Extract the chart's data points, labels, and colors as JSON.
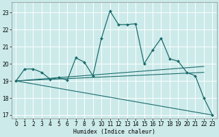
{
  "xlabel": "Humidex (Indice chaleur)",
  "background_color": "#cceaea",
  "grid_color": "#ffffff",
  "line_color": "#1a6b6b",
  "xlim": [
    -0.5,
    23.5
  ],
  "ylim": [
    16.8,
    23.6
  ],
  "yticks": [
    17,
    18,
    19,
    20,
    21,
    22,
    23
  ],
  "xticks": [
    0,
    1,
    2,
    3,
    4,
    5,
    6,
    7,
    8,
    9,
    10,
    11,
    12,
    13,
    14,
    15,
    16,
    17,
    18,
    19,
    20,
    21,
    22,
    23
  ],
  "lines": [
    {
      "x": [
        0,
        1,
        2,
        3,
        4,
        5,
        6,
        7,
        8,
        9,
        10,
        11,
        12,
        13,
        14,
        15,
        16,
        17,
        18,
        19,
        20,
        21,
        22,
        23
      ],
      "y": [
        19.0,
        19.7,
        19.7,
        19.5,
        19.1,
        19.2,
        19.05,
        20.35,
        20.1,
        19.3,
        21.5,
        23.1,
        22.3,
        22.3,
        22.35,
        20.0,
        20.8,
        21.5,
        20.3,
        20.15,
        19.5,
        19.3,
        18.0,
        17.0
      ],
      "marker": "D",
      "markersize": 2.0,
      "linewidth": 0.9
    },
    {
      "x": [
        0,
        23
      ],
      "y": [
        19.0,
        17.0
      ],
      "marker": null,
      "markersize": 0,
      "linewidth": 0.8
    },
    {
      "x": [
        0,
        22
      ],
      "y": [
        19.0,
        19.5
      ],
      "marker": null,
      "markersize": 0,
      "linewidth": 0.8
    },
    {
      "x": [
        0,
        22
      ],
      "y": [
        19.0,
        19.85
      ],
      "marker": null,
      "markersize": 0,
      "linewidth": 0.8
    }
  ]
}
